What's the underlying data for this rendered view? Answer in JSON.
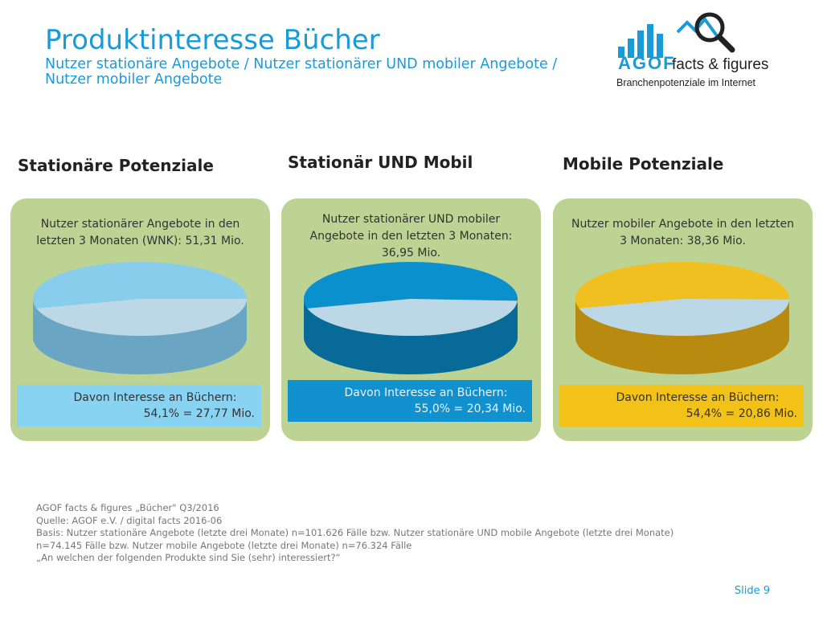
{
  "header": {
    "title": "Produktinteresse Bücher",
    "subtitle_line1": "Nutzer stationäre Angebote / Nutzer stationärer UND mobiler Angebote /",
    "subtitle_line2": "Nutzer mobiler Angebote"
  },
  "logo": {
    "brand": "AGOF",
    "product": "facts & figures",
    "tagline": "Branchenpotenziale im Internet"
  },
  "columns": [
    {
      "heading": "Stationäre Potenziale",
      "description": "Nutzer stationärer Angebote in den letzten 3 Monaten (WNK): 51,31 Mio.",
      "result_line1": "Davon Interesse an Büchern:",
      "result_line2": "54,1% = 27,77 Mio.",
      "share": 54.1,
      "colors": {
        "top": "#88cdec",
        "side": "#6aa5c4",
        "rest": "#bcd8e6",
        "box": "#88d2f2",
        "box_text": "#333333"
      }
    },
    {
      "heading": "Stationär UND Mobil",
      "description": "Nutzer stationärer UND mobiler Angebote in den letzten 3 Monaten: 36,95 Mio.",
      "result_line1": "Davon Interesse an Büchern:",
      "result_line2": "55,0% = 20,34 Mio.",
      "share": 55.0,
      "colors": {
        "top": "#0a90cc",
        "side": "#086a98",
        "rest": "#bcd8e6",
        "box": "#1291cf",
        "box_text": "#f0f0f0"
      }
    },
    {
      "heading": "Mobile Potenziale",
      "description": "Nutzer mobiler Angebote in den letzten 3 Monaten: 38,36 Mio.",
      "result_line1": "Davon Interesse an Büchern:",
      "result_line2": "54,4% = 20,86 Mio.",
      "share": 54.4,
      "colors": {
        "top": "#f0c020",
        "side": "#b88a10",
        "rest": "#bcd8e6",
        "box": "#f2c218",
        "box_text": "#333333"
      }
    }
  ],
  "chart_data": [
    {
      "type": "pie",
      "title": "Stationäre Potenziale",
      "labels": [
        "Davon Interesse an Büchern",
        ""
      ],
      "values": [
        54.1,
        45.9
      ]
    },
    {
      "type": "pie",
      "title": "Stationär UND Mobil",
      "labels": [
        "Davon Interesse an Büchern",
        ""
      ],
      "values": [
        55.0,
        45.0
      ]
    },
    {
      "type": "pie",
      "title": "Mobile Potenziale",
      "labels": [
        "Davon Interesse an Büchern",
        ""
      ],
      "values": [
        54.4,
        45.6
      ]
    }
  ],
  "footer": {
    "line1": "AGOF facts & figures „Bücher\" Q3/2016",
    "line2": "Quelle: AGOF e.V. / digital facts 2016-06",
    "line3": "Basis: Nutzer stationäre Angebote (letzte drei Monate) n=101.626 Fälle bzw. Nutzer stationäre UND mobile Angebote (letzte drei Monate)",
    "line4": "n=74.145 Fälle bzw. Nutzer mobile Angebote (letzte drei Monate) n=76.324 Fälle",
    "line5": "„An welchen der folgenden Produkte sind Sie (sehr) interessiert?“"
  },
  "slide_label": "Slide 9"
}
